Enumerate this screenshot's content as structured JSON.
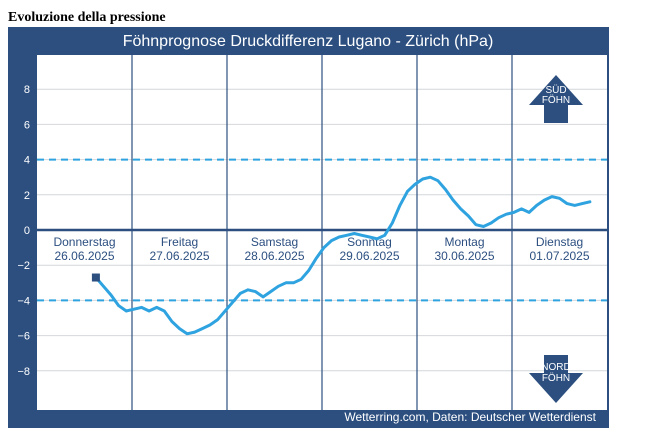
{
  "page": {
    "heading": "Evoluzione della pressione"
  },
  "chart_data": {
    "type": "line",
    "title": "Föhnprognose Druckdifferenz Lugano - Zürich (hPa)",
    "source": "Wetterring.com, Daten: Deutscher Wetterdienst",
    "ylim": [
      -10,
      10
    ],
    "yticks": [
      -8,
      -6,
      -4,
      -2,
      0,
      2,
      4,
      6,
      8
    ],
    "grid": true,
    "thresholds": [
      4,
      -4
    ],
    "days": [
      {
        "weekday": "Donnerstag",
        "date": "26.06.2025"
      },
      {
        "weekday": "Freitag",
        "date": "27.06.2025"
      },
      {
        "weekday": "Samstag",
        "date": "28.06.2025"
      },
      {
        "weekday": "Sonntag",
        "date": "29.06.2025"
      },
      {
        "weekday": "Montag",
        "date": "30.06.2025"
      },
      {
        "weekday": "Dienstag",
        "date": "01.07.2025"
      }
    ],
    "x_days": [
      0.62,
      0.7,
      0.78,
      0.86,
      0.94,
      1.02,
      1.1,
      1.18,
      1.26,
      1.34,
      1.42,
      1.5,
      1.58,
      1.66,
      1.74,
      1.82,
      1.9,
      1.98,
      2.06,
      2.14,
      2.22,
      2.3,
      2.38,
      2.46,
      2.54,
      2.62,
      2.7,
      2.78,
      2.86,
      2.94,
      3.02,
      3.1,
      3.18,
      3.26,
      3.34,
      3.42,
      3.5,
      3.58,
      3.66,
      3.74,
      3.82,
      3.9,
      3.98,
      4.06,
      4.14,
      4.22,
      4.3,
      4.38,
      4.46,
      4.54,
      4.62,
      4.7,
      4.78,
      4.86,
      4.94,
      5.02,
      5.1,
      5.18,
      5.26,
      5.34,
      5.42,
      5.5,
      5.58,
      5.66,
      5.74,
      5.82
    ],
    "values": [
      -2.7,
      -3.2,
      -3.7,
      -4.3,
      -4.6,
      -4.5,
      -4.4,
      -4.6,
      -4.4,
      -4.6,
      -5.2,
      -5.6,
      -5.9,
      -5.8,
      -5.6,
      -5.4,
      -5.1,
      -4.6,
      -4.1,
      -3.6,
      -3.4,
      -3.5,
      -3.8,
      -3.5,
      -3.2,
      -3.0,
      -3.0,
      -2.8,
      -2.3,
      -1.6,
      -1.0,
      -0.6,
      -0.4,
      -0.3,
      -0.2,
      -0.3,
      -0.4,
      -0.5,
      -0.3,
      0.4,
      1.4,
      2.2,
      2.6,
      2.9,
      3.0,
      2.8,
      2.3,
      1.7,
      1.2,
      0.8,
      0.3,
      0.2,
      0.4,
      0.7,
      0.9,
      1.0,
      1.2,
      1.0,
      1.4,
      1.7,
      1.9,
      1.8,
      1.5,
      1.4,
      1.5,
      1.6
    ],
    "series": [
      {
        "name": "",
        "color": "#2ea3e0"
      }
    ],
    "annotations": {
      "top": {
        "line1": "SÜD",
        "line2": "FÖHN"
      },
      "bottom": {
        "line1": "NORD",
        "line2": "FÖHN"
      }
    },
    "colors": {
      "background": "#2c4f80",
      "plot": "#ffffff",
      "line": "#2ea3e0",
      "threshold": "#2ea3e0",
      "zero": "#2c4f80"
    }
  }
}
